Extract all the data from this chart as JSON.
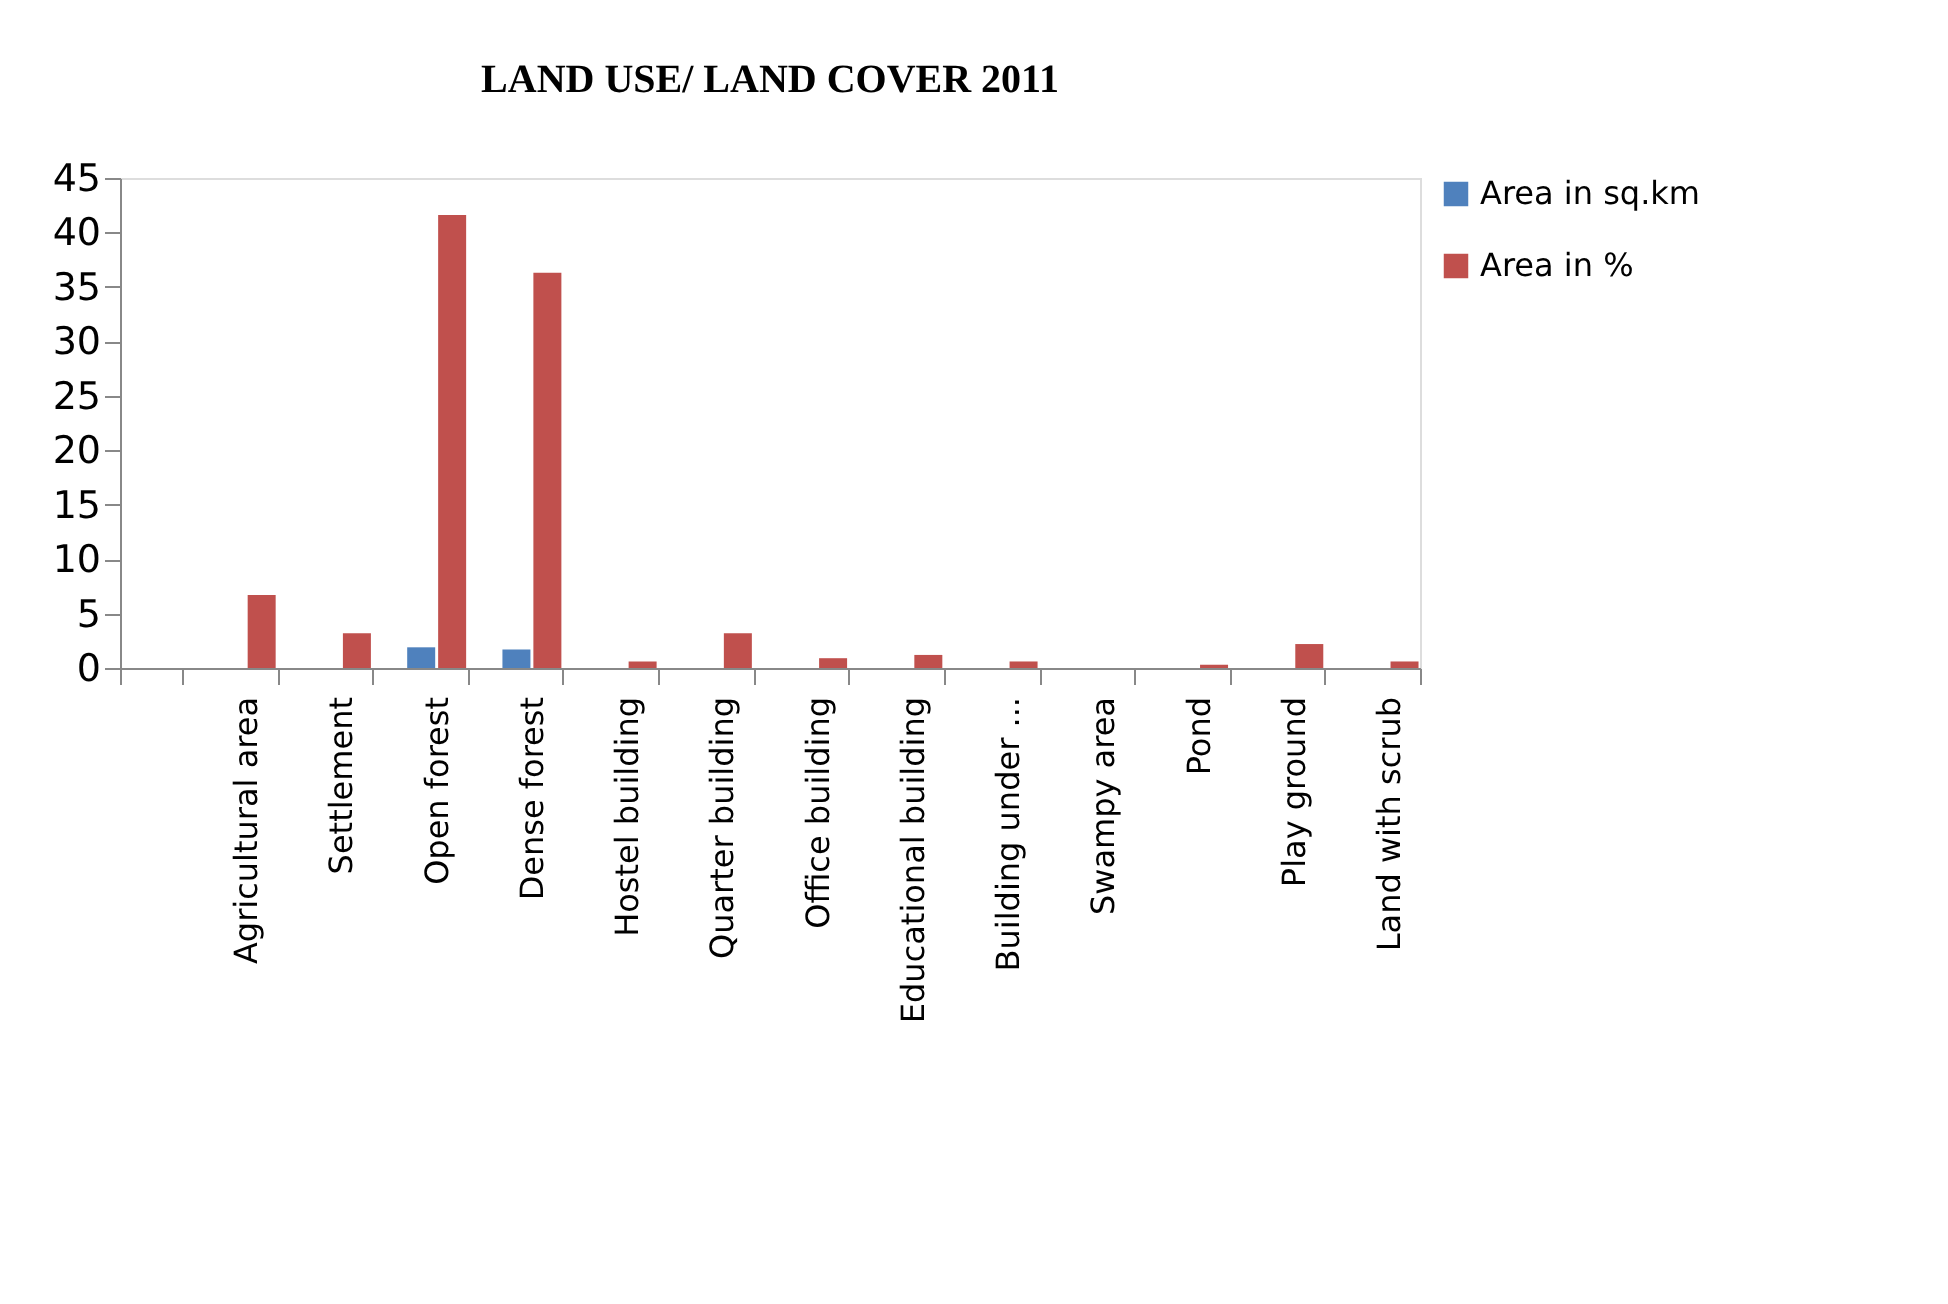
{
  "chart_data": {
    "type": "bar",
    "title": "LAND USE/ LAND COVER 2011",
    "categories": [
      null,
      "Agricultural area",
      "Settlement",
      "Open forest",
      "Dense forest",
      "Hostel building",
      "Quarter building",
      "Office building",
      "Educational building",
      "Building under ...",
      "Swampy area",
      "Pond",
      "Play ground",
      "Land with scrub"
    ],
    "series": [
      {
        "name": "Area in sq.km",
        "color": "#4f81bd",
        "values": [
          null,
          0,
          0,
          1.9,
          1.7,
          0,
          0,
          0,
          0,
          0,
          0,
          0,
          0,
          0
        ]
      },
      {
        "name": "Area in %",
        "color": "#c0504d",
        "values": [
          null,
          6.7,
          3.2,
          41.6,
          36.3,
          0.6,
          3.2,
          0.9,
          1.2,
          0.6,
          0,
          0.3,
          2.2,
          0.6
        ]
      }
    ],
    "ylim": [
      0,
      45
    ],
    "yticks": [
      0,
      5,
      10,
      15,
      20,
      25,
      30,
      35,
      40,
      45
    ],
    "grid": false,
    "legend": "right"
  }
}
